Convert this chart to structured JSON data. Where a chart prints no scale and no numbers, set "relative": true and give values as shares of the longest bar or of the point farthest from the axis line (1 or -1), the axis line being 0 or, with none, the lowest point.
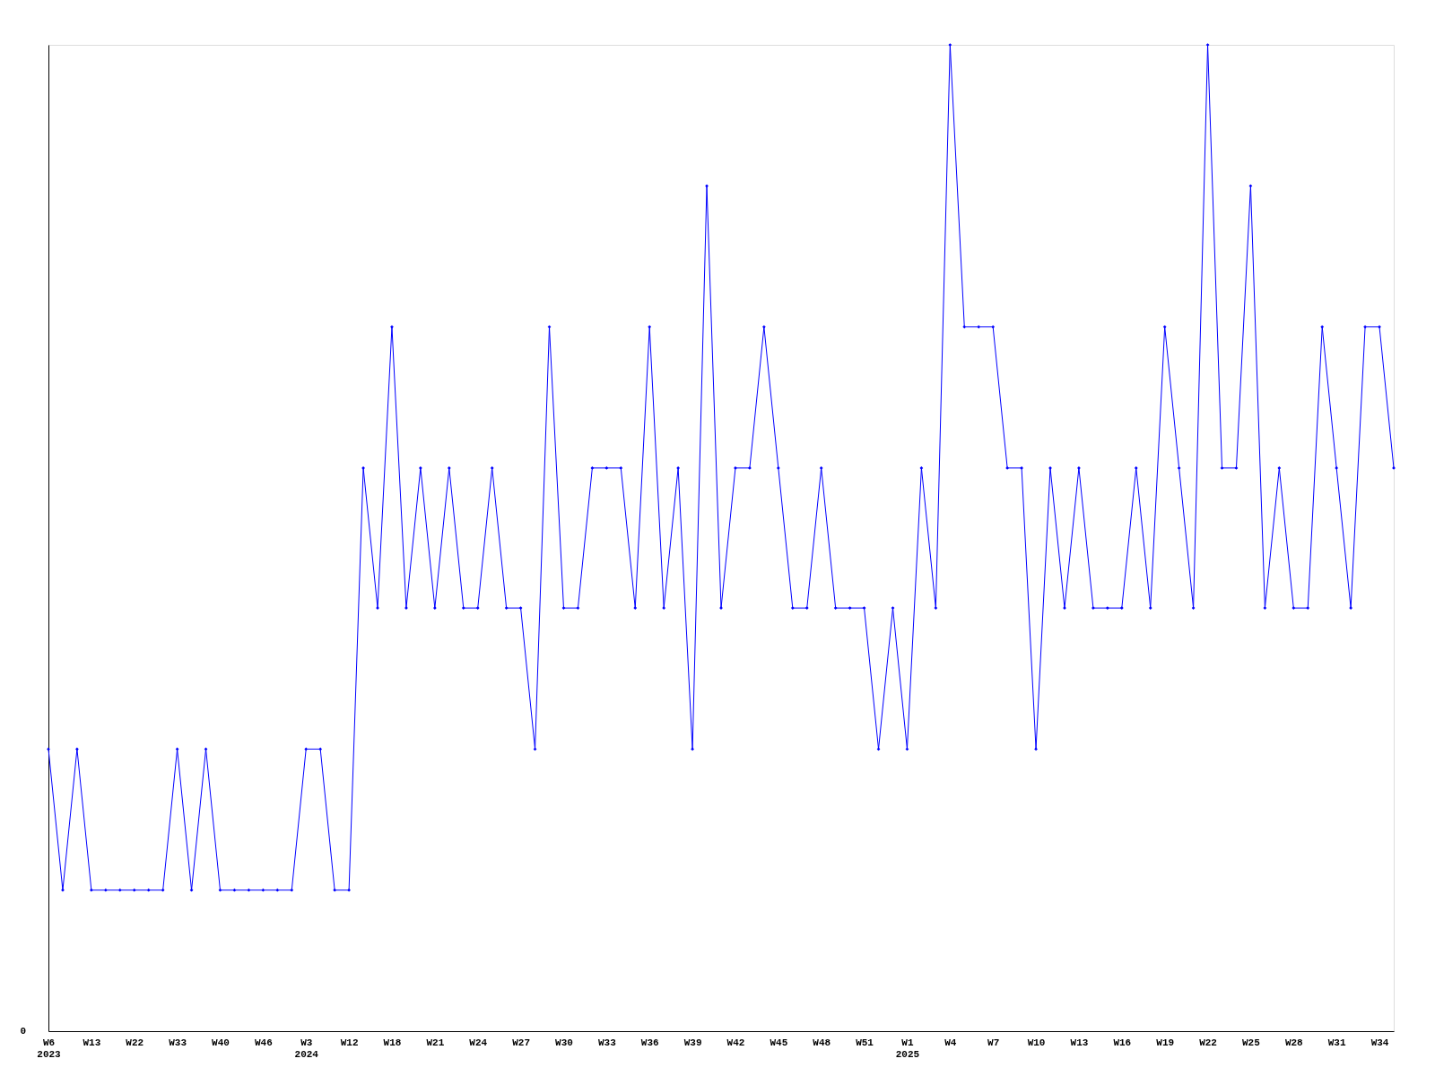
{
  "chart_data": {
    "type": "line",
    "relative": true,
    "categories": [
      "W6\n2023",
      null,
      null,
      "W13",
      null,
      null,
      "W22",
      null,
      null,
      "W33",
      null,
      null,
      "W40",
      null,
      null,
      "W46",
      null,
      null,
      "W3\n2024",
      null,
      null,
      "W12",
      null,
      null,
      "W18",
      null,
      null,
      "W21",
      null,
      null,
      "W24",
      null,
      null,
      "W27",
      null,
      null,
      "W30",
      null,
      null,
      "W33",
      null,
      null,
      "W36",
      null,
      null,
      "W39",
      null,
      null,
      "W42",
      null,
      null,
      "W45",
      null,
      null,
      "W48",
      null,
      null,
      "W51",
      null,
      null,
      "W1\n2025",
      null,
      null,
      "W4",
      null,
      null,
      "W7",
      null,
      null,
      "W10",
      null,
      null,
      "W13",
      null,
      null,
      "W16",
      null,
      null,
      "W19",
      null,
      null,
      "W22",
      null,
      null,
      "W25",
      null,
      null,
      "W28",
      null,
      null,
      "W31",
      null,
      null,
      "W34",
      null
    ],
    "series": [
      {
        "color": "#0000ff",
        "values": [
          0.286,
          0.143,
          0.286,
          0.143,
          0.143,
          0.143,
          0.143,
          0.143,
          0.143,
          0.286,
          0.143,
          0.286,
          0.143,
          0.143,
          0.143,
          0.143,
          0.143,
          0.143,
          0.286,
          0.286,
          0.143,
          0.143,
          0.571,
          0.429,
          0.714,
          0.429,
          0.571,
          0.429,
          0.571,
          0.429,
          0.429,
          0.571,
          0.429,
          0.429,
          0.286,
          0.714,
          0.429,
          0.429,
          0.571,
          0.571,
          0.571,
          0.429,
          0.714,
          0.429,
          0.571,
          0.286,
          0.857,
          0.429,
          0.571,
          0.571,
          0.714,
          0.571,
          0.429,
          0.429,
          0.571,
          0.429,
          0.429,
          0.429,
          0.286,
          0.429,
          0.286,
          0.571,
          0.429,
          1,
          0.714,
          0.714,
          0.714,
          0.571,
          0.571,
          0.286,
          0.571,
          0.429,
          0.571,
          0.429,
          0.429,
          0.429,
          0.571,
          0.429,
          0.714,
          0.571,
          0.429,
          1,
          0.571,
          0.571,
          0.857,
          0.429,
          0.571,
          0.429,
          0.429,
          0.714,
          0.571,
          0.429,
          0.714,
          0.714,
          0.571
        ]
      }
    ],
    "annotations": [
      "0"
    ],
    "marker": "diamond",
    "line_style": "solid",
    "grid": false
  }
}
